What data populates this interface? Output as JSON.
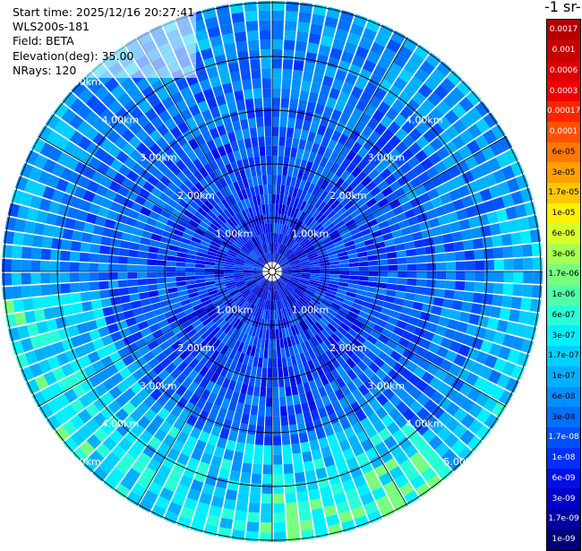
{
  "info": {
    "start_time": "Start time: 2025/12/16 20:27:41",
    "device": "WLS200s-181",
    "field": "Field: BETA",
    "elevation": "Elevation(deg): 35.00",
    "nrays": "NRays: 120"
  },
  "colorbar_title": "-1 sr-",
  "range_labels": [
    "1.00km",
    "2.00km",
    "3.00km",
    "4.00km",
    "5.00km"
  ],
  "colorbar": [
    {
      "label": "0.0017",
      "color": "#b40000",
      "text": "#ffffff"
    },
    {
      "label": "0.001",
      "color": "#c80000",
      "text": "#ffffff"
    },
    {
      "label": "0.0006",
      "color": "#dc0000",
      "text": "#ffffff"
    },
    {
      "label": "0.0003",
      "color": "#f00000",
      "text": "#ffffff"
    },
    {
      "label": "0.00017",
      "color": "#ff2400",
      "text": "#ffffff"
    },
    {
      "label": "0.0001",
      "color": "#ff5000",
      "text": "#ffffff"
    },
    {
      "label": "6e-05",
      "color": "#ff7800",
      "text": "#000000"
    },
    {
      "label": "3e-05",
      "color": "#ffa000",
      "text": "#000000"
    },
    {
      "label": "1.7e-05",
      "color": "#ffc800",
      "text": "#000000"
    },
    {
      "label": "1e-05",
      "color": "#fff000",
      "text": "#000000"
    },
    {
      "label": "6e-06",
      "color": "#d8ff28",
      "text": "#000000"
    },
    {
      "label": "3e-06",
      "color": "#a8ff50",
      "text": "#000000"
    },
    {
      "label": "1.7e-06",
      "color": "#78ff80",
      "text": "#000000"
    },
    {
      "label": "1e-06",
      "color": "#50ffa8",
      "text": "#000000"
    },
    {
      "label": "6e-07",
      "color": "#28ffd8",
      "text": "#000000"
    },
    {
      "label": "3e-07",
      "color": "#00f0ff",
      "text": "#000000"
    },
    {
      "label": "1.7e-07",
      "color": "#00d0ff",
      "text": "#000000"
    },
    {
      "label": "1e-07",
      "color": "#00b0ff",
      "text": "#000000"
    },
    {
      "label": "6e-08",
      "color": "#0090ff",
      "text": "#000000"
    },
    {
      "label": "3e-08",
      "color": "#0070ff",
      "text": "#000000"
    },
    {
      "label": "1.7e-08",
      "color": "#0050ff",
      "text": "#ffffff"
    },
    {
      "label": "1e-08",
      "color": "#0030ff",
      "text": "#ffffff"
    },
    {
      "label": "6e-09",
      "color": "#0010e8",
      "text": "#ffffff"
    },
    {
      "label": "3e-09",
      "color": "#0000c8",
      "text": "#ffffff"
    },
    {
      "label": "1.7e-09",
      "color": "#0000a0",
      "text": "#ffffff"
    },
    {
      "label": "1e-09",
      "color": "#000078",
      "text": "#ffffff"
    }
  ]
}
